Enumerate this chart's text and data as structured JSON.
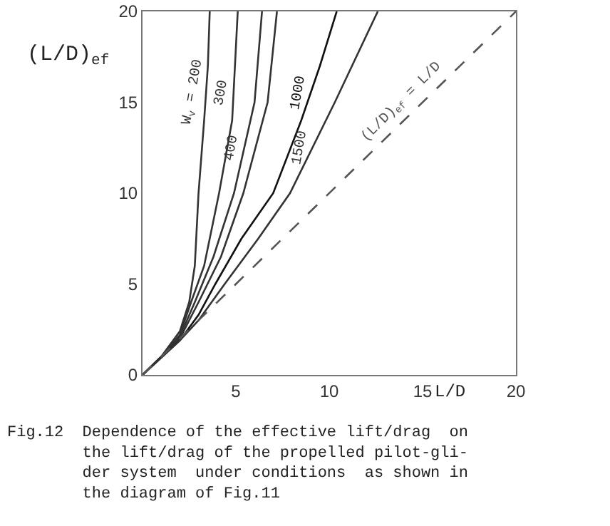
{
  "chart_data": {
    "type": "line",
    "xlabel": "L/D",
    "ylabel": "(L/D)$_{ef}$",
    "xlim": [
      0,
      20
    ],
    "ylim": [
      0,
      20
    ],
    "xticks": [
      {
        "value": 0,
        "label": null
      },
      5,
      10,
      15,
      20
    ],
    "yticks": [
      0,
      5,
      10,
      15,
      20
    ],
    "grid": false,
    "legend": false,
    "marker": "none",
    "line_style": "solid",
    "series": [
      {
        "name": "W$_{v}$ = 200",
        "color": "#333333",
        "x": [
          0,
          1,
          2,
          2.5,
          2.8,
          3.0,
          3.3,
          3.5,
          3.6
        ],
        "values": [
          0,
          1,
          2.4,
          4,
          6,
          10,
          14,
          17,
          20
        ]
      },
      {
        "name": "300",
        "color": "#333333",
        "x": [
          0,
          1,
          2,
          2.6,
          3.3,
          4.1,
          4.8,
          4.95,
          5.1
        ],
        "values": [
          0,
          1,
          2.2,
          4,
          6,
          10,
          14,
          17,
          20
        ]
      },
      {
        "name": "400",
        "color": "#333333",
        "x": [
          0,
          1,
          2,
          2.8,
          3.8,
          4.9,
          6.0,
          6.4
        ],
        "values": [
          0,
          1,
          2.1,
          4,
          6.5,
          10,
          15,
          20
        ]
      },
      {
        "color": "#333333",
        "x": [
          0,
          2,
          3,
          4.2,
          5.4,
          6.7,
          7.2
        ],
        "values": [
          0,
          2,
          4,
          6.5,
          10,
          15,
          20
        ]
      },
      {
        "name": "1000",
        "color": "#111111",
        "x": [
          0,
          2,
          3,
          3.9,
          5.3,
          7.0,
          8.5,
          9.5,
          10.4
        ],
        "values": [
          0,
          1.9,
          3.3,
          5,
          7.5,
          10,
          14,
          17,
          20
        ]
      },
      {
        "name": "1500",
        "color": "#333333",
        "x": [
          0,
          2,
          3,
          4.4,
          6.2,
          7.9,
          10.3,
          12.6
        ],
        "values": [
          0,
          1.9,
          3,
          5,
          7.5,
          10,
          15,
          20
        ]
      },
      {
        "name": "(L/D)$_{ef}$ = L/D",
        "color": "#555555",
        "line_style": "dashed",
        "x": [
          0,
          20
        ],
        "values": [
          0,
          20
        ]
      }
    ],
    "annotations": [
      "Fig.12  Dependence of the effective lift/drag  on\n        the lift/drag of the propelled pilot-gli-\n        der system  under conditions  as shown in\n        the diagram of Fig.11"
    ]
  }
}
